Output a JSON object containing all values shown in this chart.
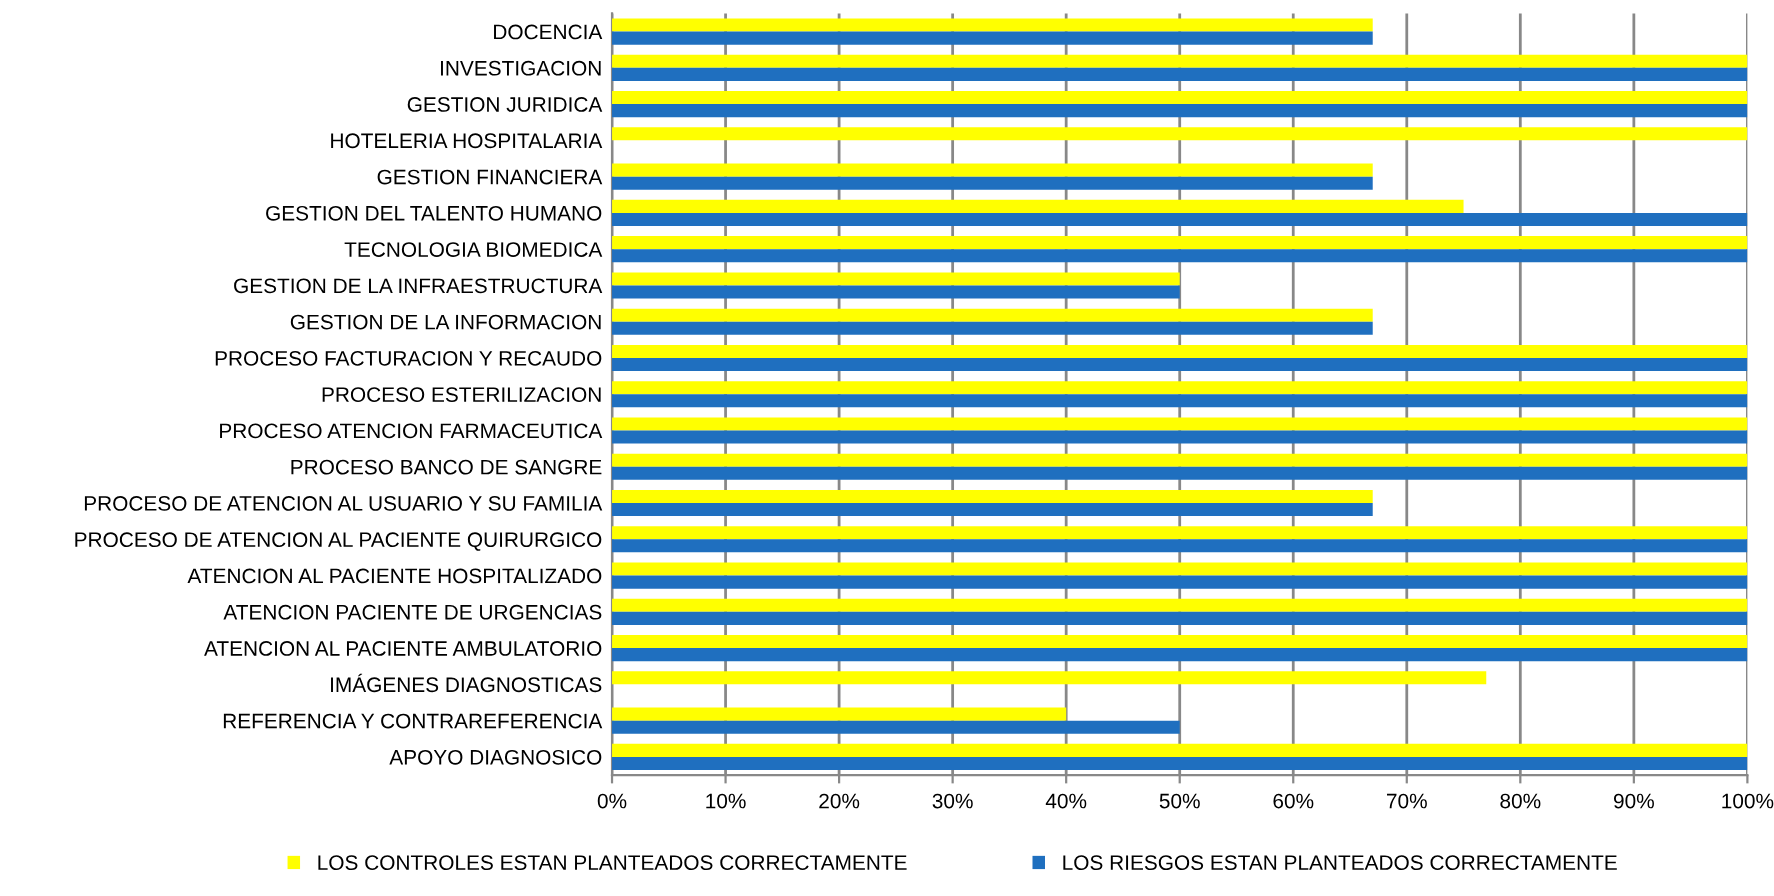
{
  "chart_data": {
    "type": "bar",
    "orientation": "horizontal",
    "categories": [
      "DOCENCIA",
      "INVESTIGACION",
      "GESTION JURIDICA",
      "HOTELERIA HOSPITALARIA",
      "GESTION FINANCIERA",
      "GESTION DEL TALENTO HUMANO",
      "TECNOLOGIA BIOMEDICA",
      "GESTION DE LA INFRAESTRUCTURA",
      "GESTION DE LA INFORMACION",
      "PROCESO FACTURACION Y RECAUDO",
      "PROCESO ESTERILIZACION",
      "PROCESO ATENCION FARMACEUTICA",
      "PROCESO BANCO DE SANGRE",
      "PROCESO DE ATENCION AL USUARIO Y SU FAMILIA",
      "PROCESO DE ATENCION AL PACIENTE QUIRURGICO",
      "ATENCION AL PACIENTE HOSPITALIZADO",
      "ATENCION PACIENTE DE URGENCIAS",
      "ATENCION AL PACIENTE AMBULATORIO",
      "IMÁGENES DIAGNOSTICAS",
      "REFERENCIA Y CONTRAREFERENCIA",
      "APOYO DIAGNOSICO"
    ],
    "series": [
      {
        "name": "LOS CONTROLES ESTAN PLANTEADOS CORRECTAMENTE",
        "color": "#ffff00",
        "values": [
          67,
          100,
          100,
          100,
          67,
          75,
          100,
          50,
          67,
          100,
          100,
          100,
          100,
          67,
          100,
          100,
          100,
          100,
          77,
          40,
          100
        ]
      },
      {
        "name": "LOS RIESGOS ESTAN PLANTEADOS CORRECTAMENTE",
        "color": "#1f6fbf",
        "values": [
          67,
          100,
          100,
          null,
          67,
          100,
          100,
          50,
          67,
          100,
          100,
          100,
          100,
          67,
          100,
          100,
          100,
          100,
          null,
          50,
          100
        ]
      }
    ],
    "xlim": [
      0,
      100
    ],
    "xticks": [
      {
        "value": 0,
        "label": "0%"
      },
      {
        "value": 10,
        "label": "10%"
      },
      {
        "value": 20,
        "label": "20%"
      },
      {
        "value": 30,
        "label": "30%"
      },
      {
        "value": 40,
        "label": "40%"
      },
      {
        "value": 50,
        "label": "50%"
      },
      {
        "value": 60,
        "label": "60%"
      },
      {
        "value": 70,
        "label": "70%"
      },
      {
        "value": 80,
        "label": "80%"
      },
      {
        "value": 90,
        "label": "90%"
      },
      {
        "value": 100,
        "label": "100%"
      }
    ],
    "grid": "x",
    "legend": "bottom"
  }
}
